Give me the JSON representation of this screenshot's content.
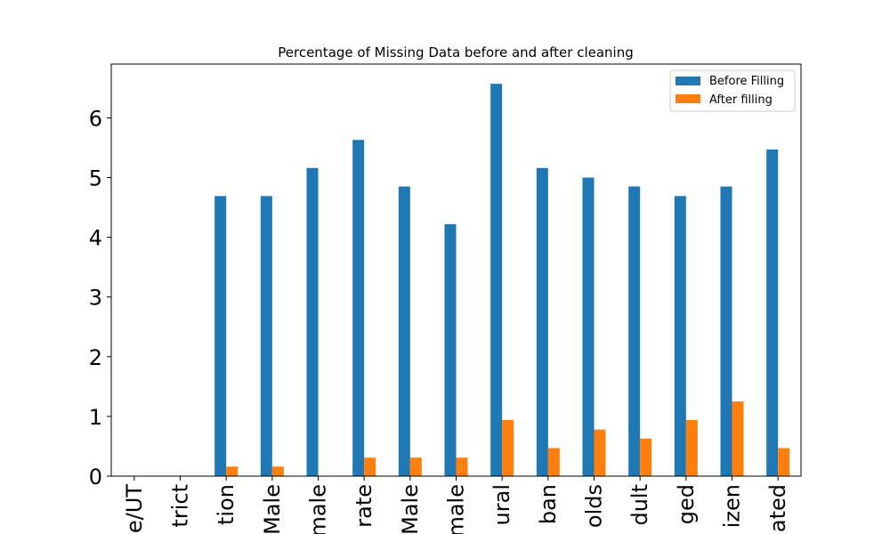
{
  "chart_data": {
    "type": "bar",
    "title": "Percentage of Missing Data before and after cleaning",
    "xlabel": "",
    "ylabel": "",
    "categories": [
      "e/UT",
      "trict",
      "tion",
      "Male",
      "male",
      "rate",
      "Male",
      "male",
      "ural",
      "ban",
      "olds",
      "dult",
      "ged",
      "izen",
      "ated"
    ],
    "series": [
      {
        "name": "Before Filling",
        "color": "#1f77b4",
        "values": [
          0,
          0,
          4.69,
          4.69,
          5.16,
          5.63,
          4.85,
          4.22,
          6.57,
          5.16,
          5.0,
          4.85,
          4.69,
          4.85,
          5.47
        ]
      },
      {
        "name": "After filling",
        "color": "#ff7f0e",
        "values": [
          0,
          0,
          0.16,
          0.16,
          0,
          0.31,
          0.31,
          0.31,
          0.94,
          0.47,
          0.78,
          0.63,
          0.94,
          1.25,
          0.47
        ]
      }
    ],
    "ylim": [
      0,
      6.9
    ],
    "yticks": [
      0,
      1,
      2,
      3,
      4,
      5,
      6
    ],
    "grid": false,
    "legend_position": "top-right"
  }
}
